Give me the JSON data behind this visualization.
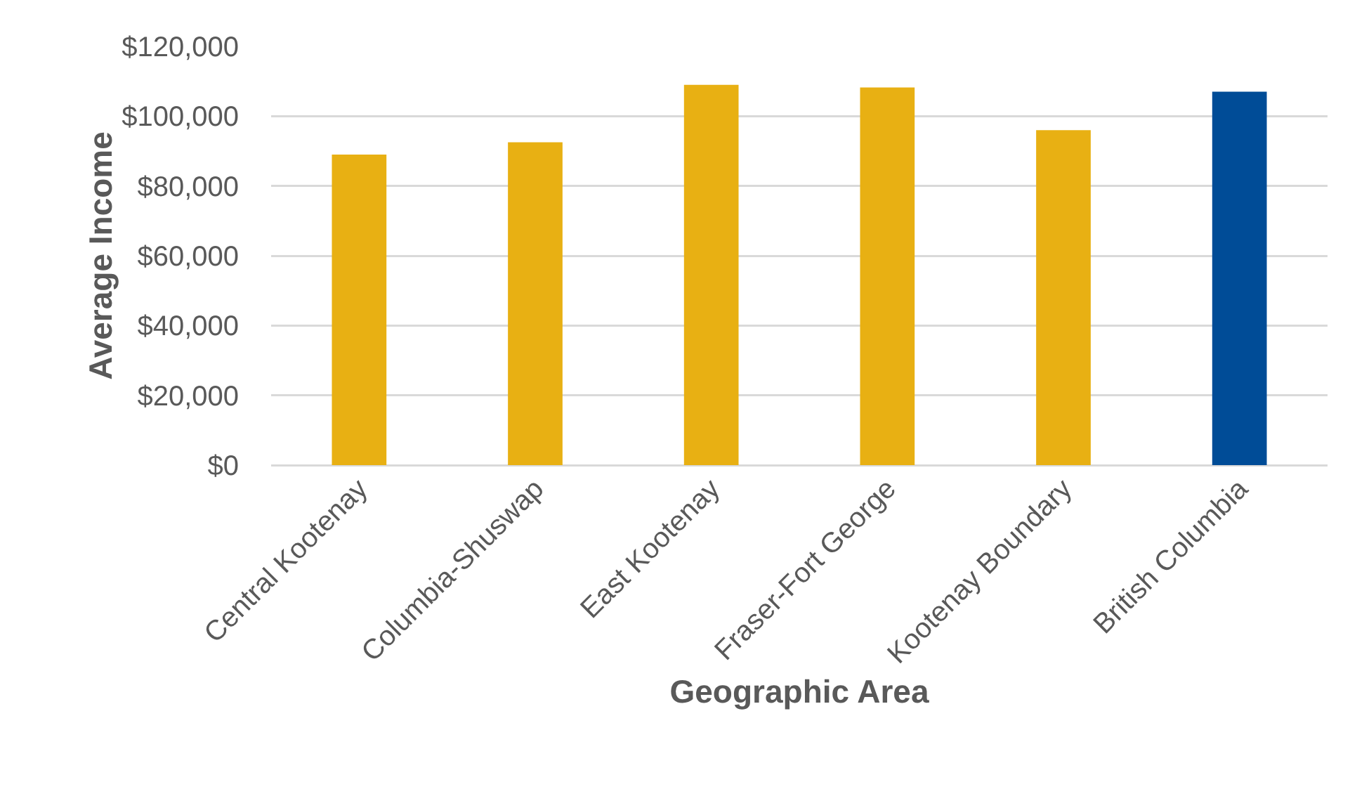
{
  "chart_data": {
    "type": "bar",
    "xlabel": "Geographic Area",
    "ylabel": "Average Income",
    "categories": [
      "Central Kootenay",
      "Columbia-Shuswap",
      "East Kootenay",
      "Fraser-Fort George",
      "Kootenay Boundary",
      "British Columbia"
    ],
    "values": [
      89000,
      92500,
      109000,
      108200,
      96000,
      107000
    ],
    "colors": [
      "#e8b013",
      "#e8b013",
      "#e8b013",
      "#e8b013",
      "#e8b013",
      "#004c97"
    ],
    "ylim": [
      0,
      120000
    ],
    "yticks": [
      {
        "value": 0,
        "label": "$0"
      },
      {
        "value": 20000,
        "label": "$20,000"
      },
      {
        "value": 40000,
        "label": "$40,000"
      },
      {
        "value": 60000,
        "label": "$60,000"
      },
      {
        "value": 80000,
        "label": "$80,000"
      },
      {
        "value": 100000,
        "label": "$100,000"
      },
      {
        "value": 120000,
        "label": "$120,000"
      }
    ],
    "grid": "y"
  }
}
